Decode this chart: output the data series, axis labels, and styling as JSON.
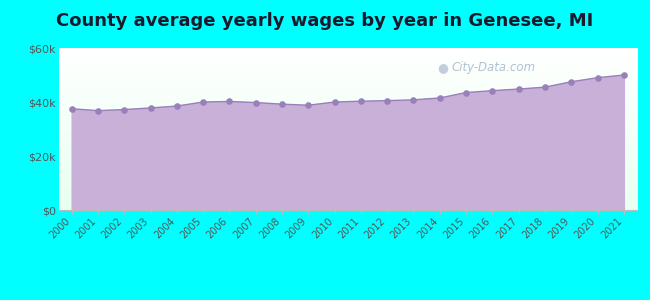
{
  "title": "County average yearly wages by year in Genesee, MI",
  "title_fontsize": 13,
  "background_color": "#00FFFF",
  "plot_bg_top": "#e8fff0",
  "plot_bg_bottom": "#ffffff",
  "area_color": "#C8B0D8",
  "line_color": "#9980BB",
  "marker_color": "#9980BB",
  "years": [
    2000,
    2001,
    2002,
    2003,
    2004,
    2005,
    2006,
    2007,
    2008,
    2009,
    2010,
    2011,
    2012,
    2013,
    2014,
    2015,
    2016,
    2017,
    2018,
    2019,
    2020,
    2021
  ],
  "wages": [
    37500,
    36800,
    37200,
    37800,
    38500,
    40000,
    40200,
    39800,
    39200,
    38800,
    40000,
    40300,
    40500,
    40800,
    41500,
    43500,
    44200,
    44800,
    45500,
    47500,
    49000,
    50000
  ],
  "ylim": [
    0,
    60000
  ],
  "yticks": [
    0,
    20000,
    40000,
    60000
  ],
  "ytick_labels": [
    "$0",
    "$20k",
    "$40k",
    "$60k"
  ],
  "watermark": "City-Data.com",
  "watermark_color": "#aabbcc",
  "title_color": "#1a1a2e"
}
